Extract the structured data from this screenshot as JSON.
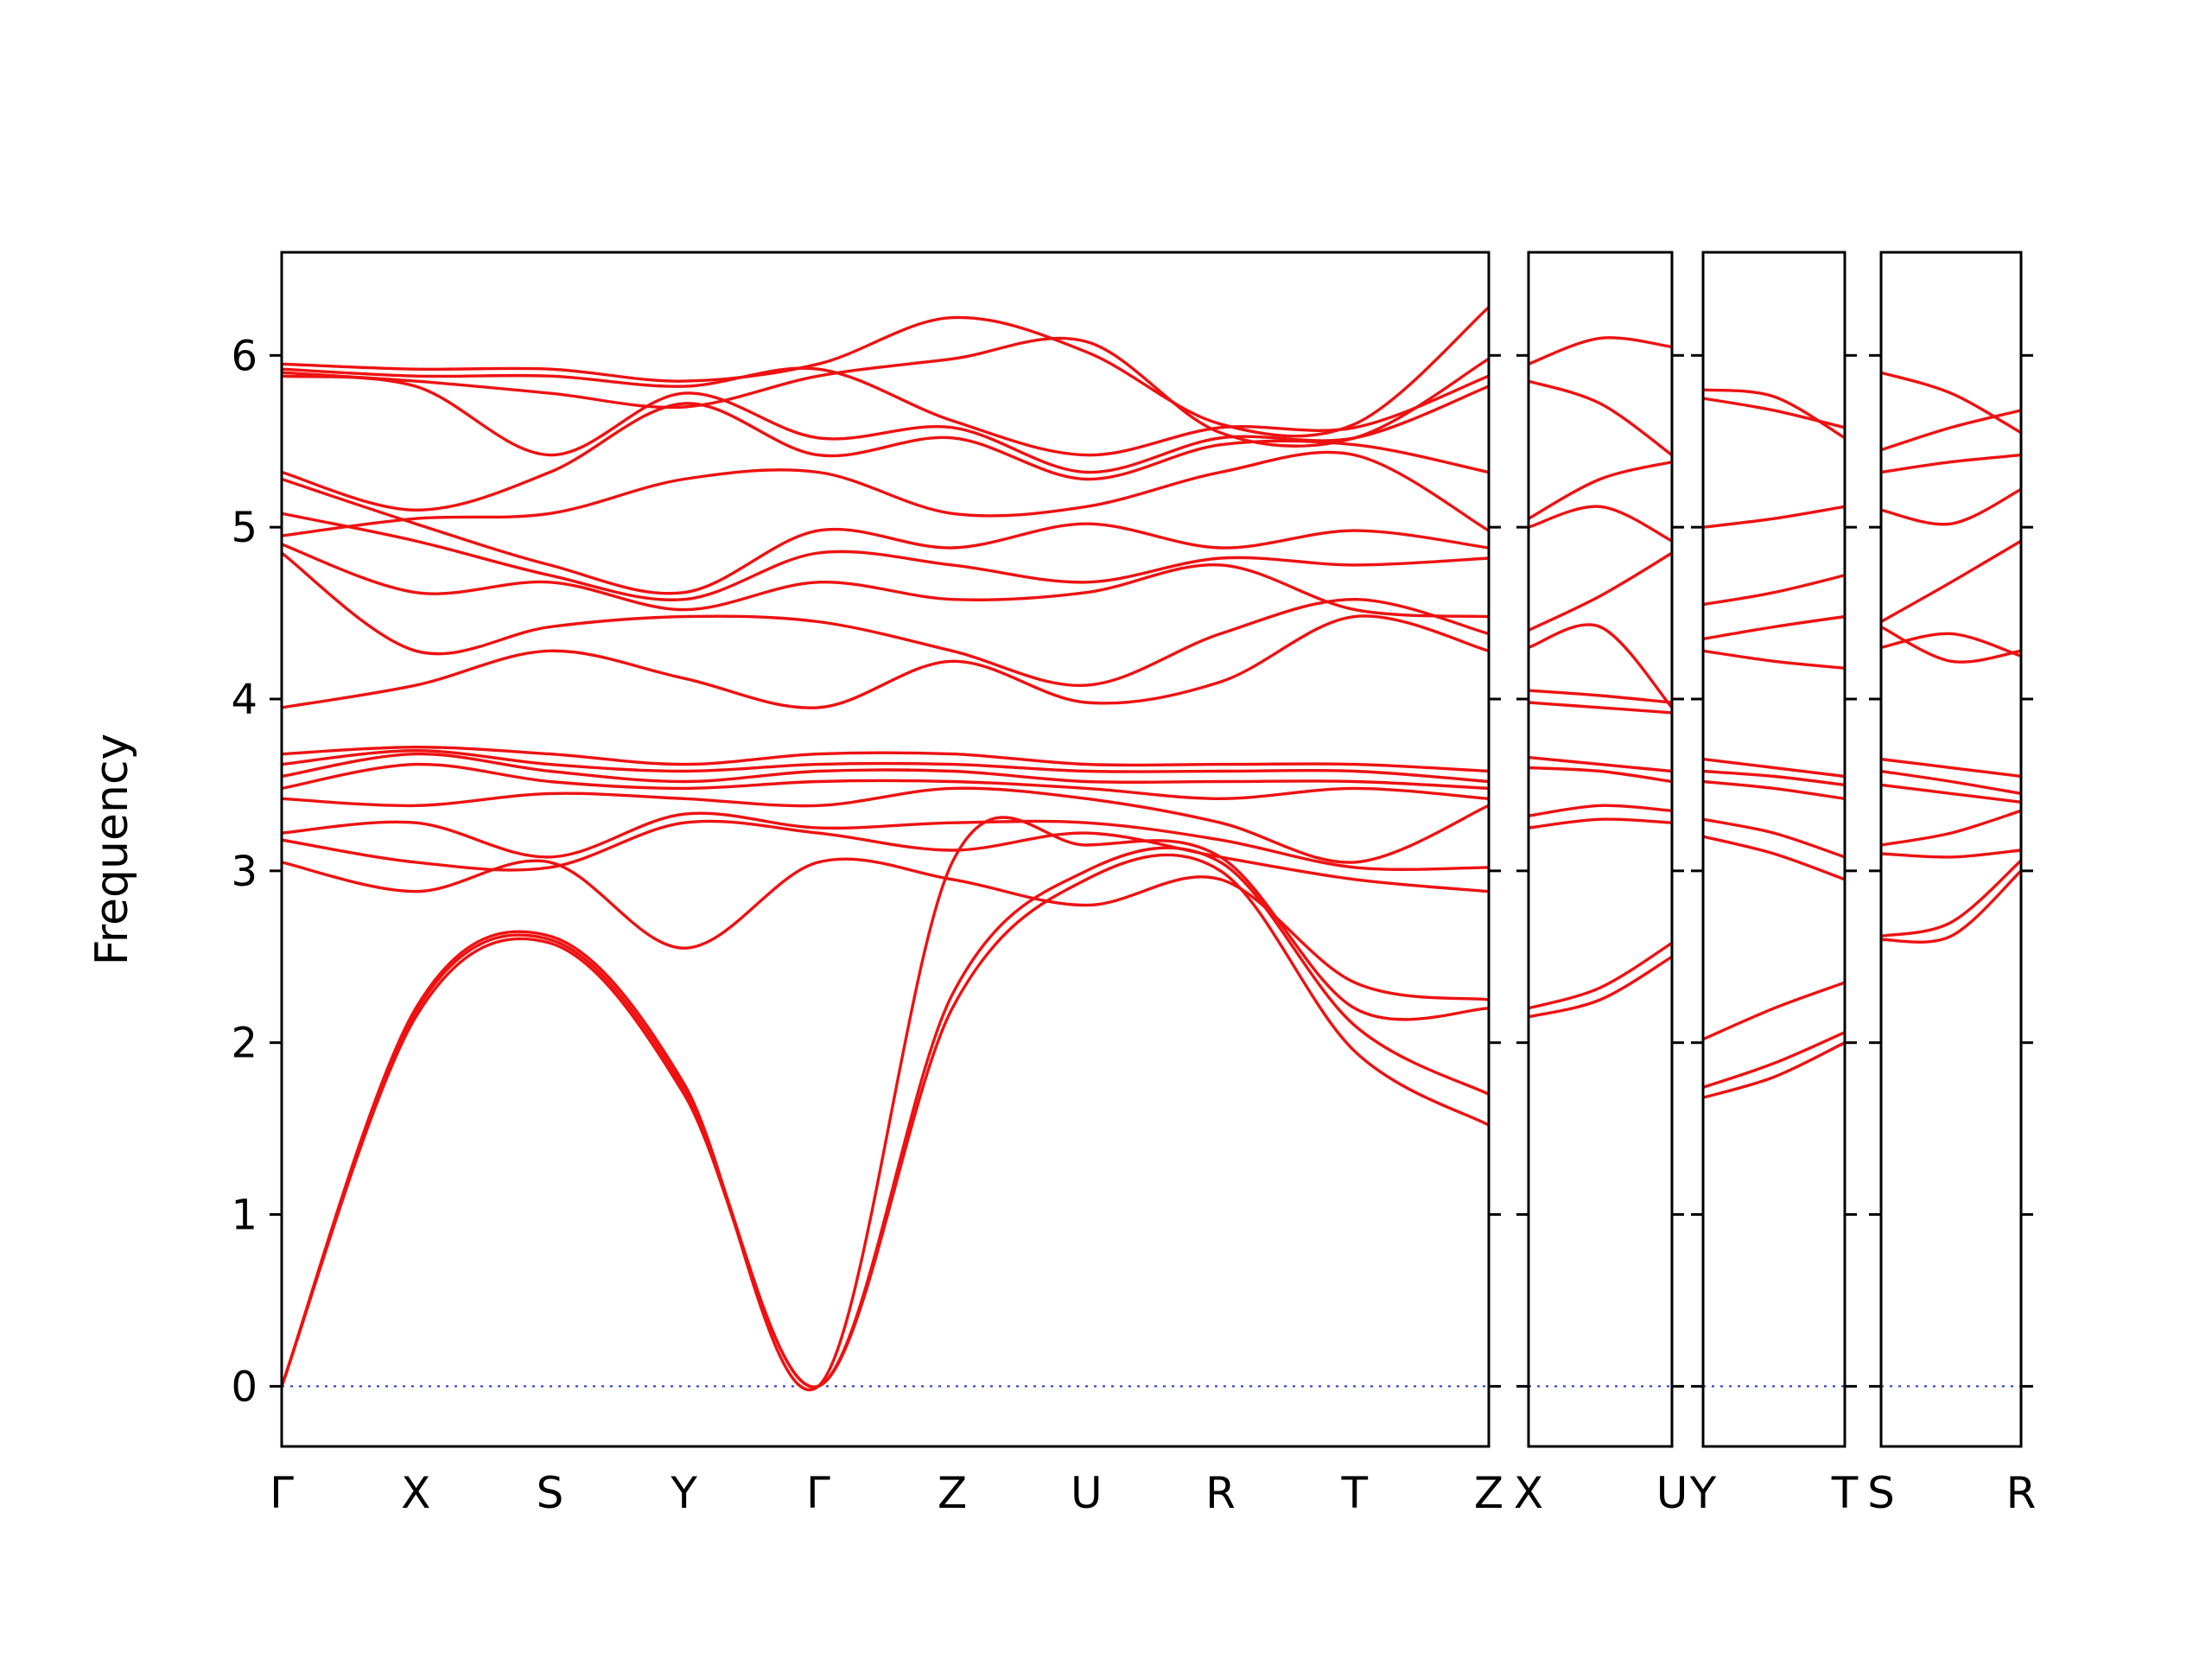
{
  "figure": {
    "background": "#ffffff"
  },
  "chart_data": {
    "type": "line",
    "title": "",
    "xlabel": "",
    "ylabel": "Frequency",
    "ylim": [
      -0.35,
      6.6
    ],
    "yticks": [
      0,
      1,
      2,
      3,
      4,
      5,
      6
    ],
    "grid": false,
    "legend": "none",
    "line_color": "#ee1111",
    "axis_color": "#000000",
    "zero_line": {
      "value": 0,
      "color": "#2233cc",
      "style": "dotted"
    },
    "panels": [
      {
        "name": "main-path",
        "x_labels": [
          "Γ",
          "X",
          "S",
          "Y",
          "Γ",
          "Z",
          "U",
          "R",
          "T",
          "Z"
        ],
        "x_evenly_spaced": true,
        "bands": [
          [
            0.0,
            2.15,
            2.58,
            1.7,
            0.0,
            2.2,
            2.95,
            3.0,
            1.95,
            1.52
          ],
          [
            0.0,
            2.18,
            2.6,
            1.73,
            0.0,
            2.28,
            3.0,
            3.05,
            2.1,
            1.7
          ],
          [
            0.0,
            2.2,
            2.62,
            1.76,
            0.0,
            3.05,
            3.15,
            3.08,
            2.2,
            2.2
          ],
          [
            3.05,
            2.88,
            3.05,
            2.55,
            3.05,
            2.95,
            2.8,
            2.95,
            2.35,
            2.25
          ],
          [
            3.18,
            3.05,
            3.02,
            3.28,
            3.22,
            3.12,
            3.22,
            3.08,
            2.95,
            2.88
          ],
          [
            3.22,
            3.28,
            3.08,
            3.33,
            3.25,
            3.28,
            3.28,
            3.18,
            3.02,
            3.02
          ],
          [
            3.42,
            3.38,
            3.45,
            3.42,
            3.38,
            3.48,
            3.42,
            3.28,
            3.05,
            3.38
          ],
          [
            3.48,
            3.62,
            3.52,
            3.48,
            3.52,
            3.52,
            3.48,
            3.42,
            3.48,
            3.42
          ],
          [
            3.55,
            3.68,
            3.58,
            3.52,
            3.58,
            3.58,
            3.52,
            3.52,
            3.52,
            3.48
          ],
          [
            3.62,
            3.7,
            3.62,
            3.58,
            3.62,
            3.62,
            3.58,
            3.58,
            3.58,
            3.52
          ],
          [
            3.68,
            3.72,
            3.68,
            3.62,
            3.68,
            3.68,
            3.62,
            3.62,
            3.62,
            3.58
          ],
          [
            3.95,
            4.08,
            4.28,
            4.12,
            3.95,
            4.22,
            3.98,
            4.1,
            4.48,
            4.28
          ],
          [
            4.85,
            4.28,
            4.42,
            4.48,
            4.45,
            4.28,
            4.08,
            4.38,
            4.58,
            4.38
          ],
          [
            4.9,
            4.62,
            4.68,
            4.52,
            4.68,
            4.58,
            4.62,
            4.78,
            4.52,
            4.48
          ],
          [
            5.08,
            4.92,
            4.72,
            4.58,
            4.85,
            4.78,
            4.68,
            4.82,
            4.78,
            4.82
          ],
          [
            5.28,
            5.02,
            4.78,
            4.62,
            4.98,
            4.88,
            5.02,
            4.88,
            4.98,
            4.88
          ],
          [
            4.95,
            5.05,
            5.08,
            5.28,
            5.32,
            5.08,
            5.12,
            5.32,
            5.42,
            4.98
          ],
          [
            5.32,
            5.1,
            5.32,
            5.72,
            5.42,
            5.52,
            5.28,
            5.48,
            5.48,
            5.32
          ],
          [
            5.88,
            5.82,
            5.42,
            5.78,
            5.52,
            5.58,
            5.32,
            5.52,
            5.52,
            5.82
          ],
          [
            5.92,
            5.88,
            5.88,
            5.82,
            5.92,
            5.62,
            5.42,
            5.58,
            5.58,
            5.88
          ],
          [
            5.95,
            5.92,
            5.92,
            5.85,
            5.95,
            6.22,
            6.02,
            5.6,
            5.6,
            6.28
          ],
          [
            5.9,
            5.85,
            5.78,
            5.7,
            5.88,
            5.98,
            6.08,
            5.55,
            5.52,
            5.98
          ]
        ]
      },
      {
        "name": "X-U-path",
        "x_labels": [
          "X",
          "U"
        ],
        "x_evenly_spaced": true,
        "bands": [
          [
            2.15,
            2.25,
            2.5
          ],
          [
            2.2,
            2.32,
            2.58
          ],
          [
            3.25,
            3.3,
            3.28
          ],
          [
            3.32,
            3.38,
            3.35
          ],
          [
            3.6,
            3.58,
            3.52
          ],
          [
            3.66,
            3.62,
            3.58
          ],
          [
            3.98,
            3.95,
            3.92
          ],
          [
            4.05,
            4.02,
            3.98
          ],
          [
            4.3,
            4.42,
            3.95
          ],
          [
            4.4,
            4.6,
            4.85
          ],
          [
            5.0,
            5.12,
            4.92
          ],
          [
            5.05,
            5.28,
            5.38
          ],
          [
            5.85,
            5.72,
            5.42
          ],
          [
            5.95,
            6.1,
            6.05
          ]
        ]
      },
      {
        "name": "Y-T-path",
        "x_labels": [
          "Y",
          "T"
        ],
        "x_evenly_spaced": true,
        "bands": [
          [
            1.68,
            1.8,
            2.0
          ],
          [
            1.74,
            1.88,
            2.06
          ],
          [
            2.02,
            2.2,
            2.35
          ],
          [
            3.2,
            3.1,
            2.95
          ],
          [
            3.3,
            3.22,
            3.08
          ],
          [
            3.52,
            3.48,
            3.42
          ],
          [
            3.58,
            3.55,
            3.5
          ],
          [
            3.65,
            3.6,
            3.55
          ],
          [
            4.28,
            4.22,
            4.18
          ],
          [
            4.35,
            4.42,
            4.48
          ],
          [
            4.55,
            4.62,
            4.72
          ],
          [
            5.0,
            5.05,
            5.12
          ],
          [
            5.75,
            5.68,
            5.58
          ],
          [
            5.8,
            5.76,
            5.52
          ]
        ]
      },
      {
        "name": "S-R-path",
        "x_labels": [
          "S",
          "R"
        ],
        "x_evenly_spaced": true,
        "bands": [
          [
            2.6,
            2.62,
            3.0
          ],
          [
            2.62,
            2.7,
            3.06
          ],
          [
            3.1,
            3.08,
            3.12
          ],
          [
            3.15,
            3.22,
            3.35
          ],
          [
            3.5,
            3.45,
            3.4
          ],
          [
            3.58,
            3.52,
            3.45
          ],
          [
            3.65,
            3.6,
            3.55
          ],
          [
            4.3,
            4.38,
            4.25
          ],
          [
            4.42,
            4.22,
            4.28
          ],
          [
            4.45,
            4.68,
            4.92
          ],
          [
            5.1,
            5.02,
            5.22
          ],
          [
            5.32,
            5.38,
            5.42
          ],
          [
            5.9,
            5.78,
            5.55
          ],
          [
            5.45,
            5.58,
            5.68
          ]
        ]
      }
    ]
  }
}
